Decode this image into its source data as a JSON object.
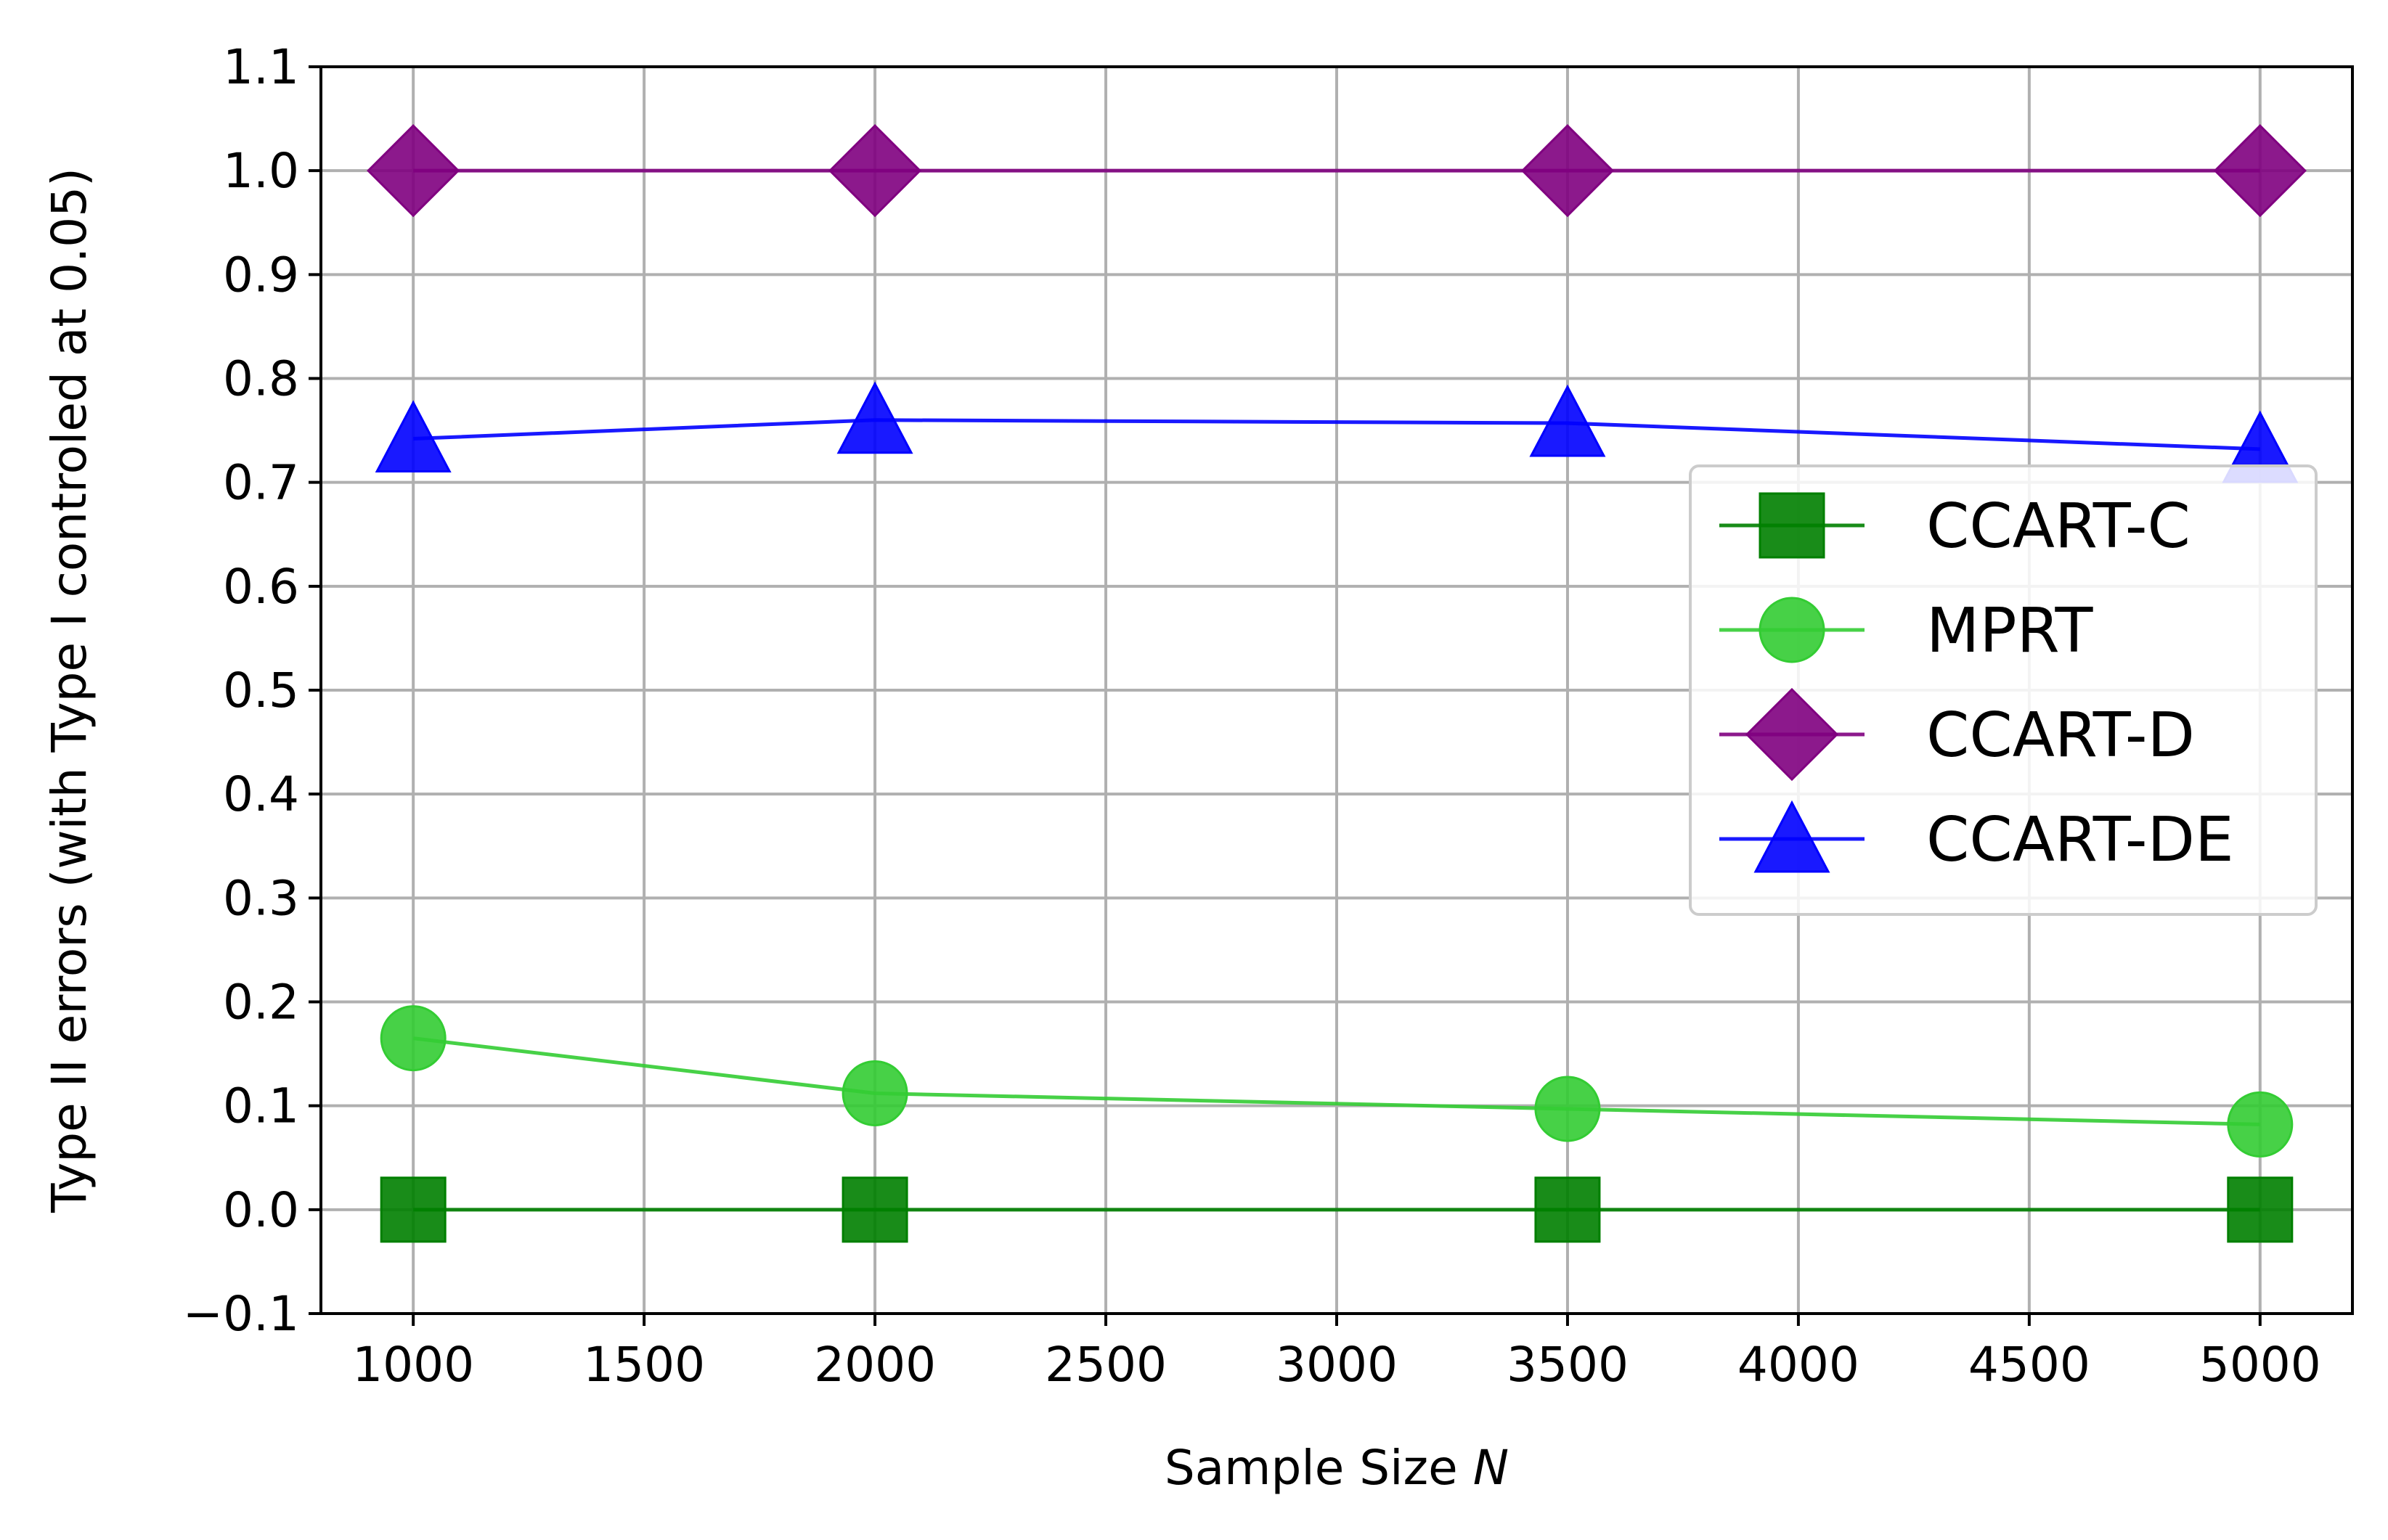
{
  "chart_data": {
    "type": "line",
    "title": "",
    "xlabel": "Sample Size",
    "xlabel_var": "N",
    "ylabel": "Type II errors (with Type I controled at 0.05)",
    "xlim": [
      800,
      5200
    ],
    "ylim": [
      -0.1,
      1.1
    ],
    "xticks": [
      1000,
      1500,
      2000,
      2500,
      3000,
      3500,
      4000,
      4500,
      5000
    ],
    "xtick_labels": [
      "1000",
      "1500",
      "2000",
      "2500",
      "3000",
      "3500",
      "4000",
      "4500",
      "5000"
    ],
    "yticks": [
      -0.1,
      0.0,
      0.1,
      0.2,
      0.3,
      0.4,
      0.5,
      0.6,
      0.7,
      0.8,
      0.9,
      1.0,
      1.1
    ],
    "ytick_labels": [
      "−0.1",
      "0.0",
      "0.1",
      "0.2",
      "0.3",
      "0.4",
      "0.5",
      "0.6",
      "0.7",
      "0.8",
      "0.9",
      "1.0",
      "1.1"
    ],
    "grid": true,
    "legend_position": "center-right",
    "x": [
      1000,
      2000,
      3500,
      5000
    ],
    "series": [
      {
        "name": "CCART-C",
        "values": [
          0.0,
          0.0,
          0.0,
          0.0
        ],
        "color": "#007f00",
        "marker": "square"
      },
      {
        "name": "MPRT",
        "values": [
          0.165,
          0.112,
          0.097,
          0.082
        ],
        "color": "#33cc33",
        "marker": "circle"
      },
      {
        "name": "CCART-D",
        "values": [
          1.0,
          1.0,
          1.0,
          1.0
        ],
        "color": "#800080",
        "marker": "diamond"
      },
      {
        "name": "CCART-DE",
        "values": [
          0.742,
          0.76,
          0.757,
          0.732
        ],
        "color": "#0000ff",
        "marker": "triangle"
      }
    ]
  }
}
